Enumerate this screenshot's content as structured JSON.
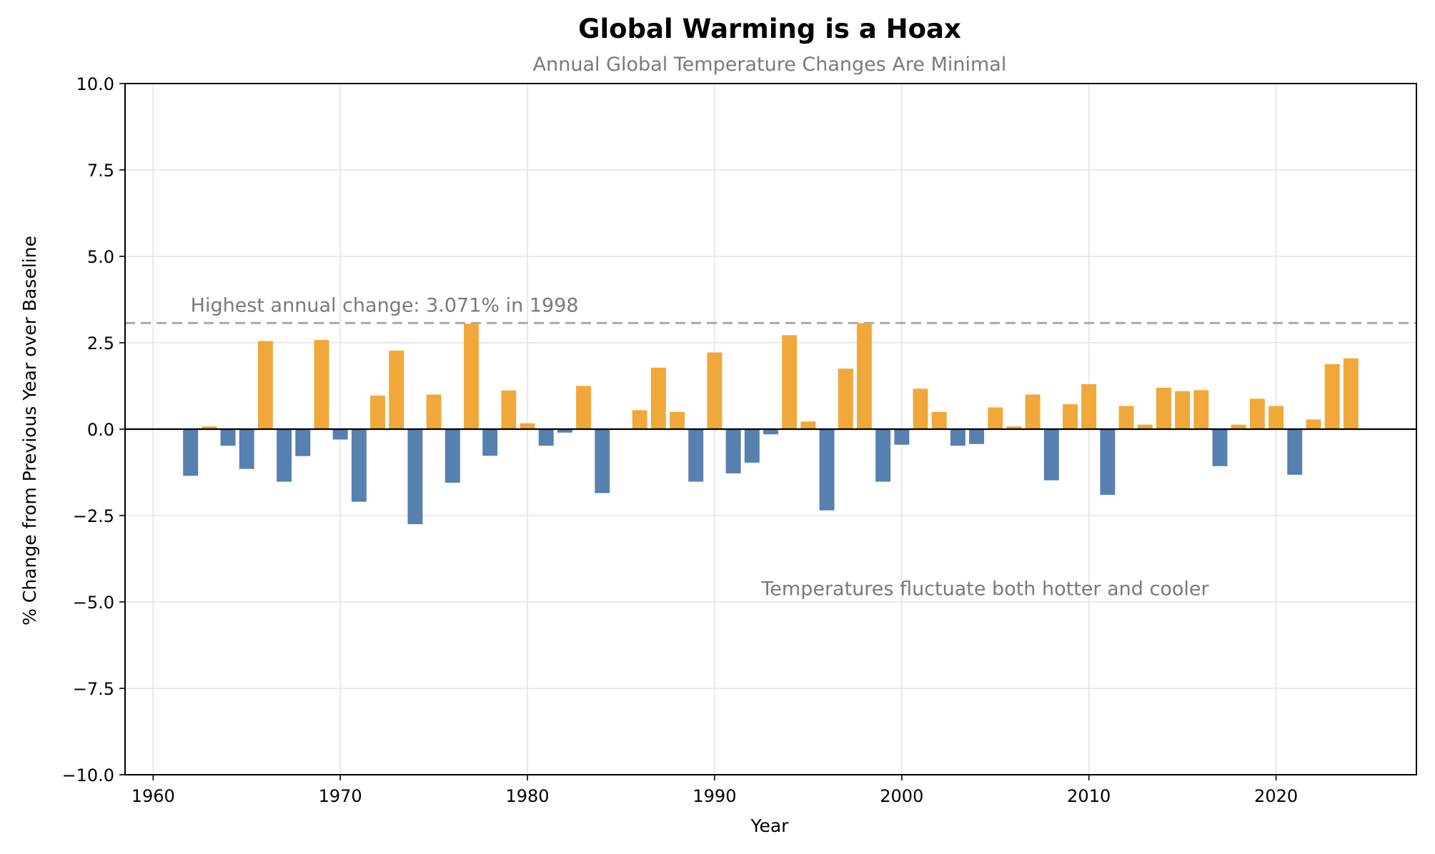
{
  "chart_data": {
    "type": "bar",
    "title": "Global Warming is a Hoax",
    "subtitle": "Annual Global Temperature Changes Are Minimal",
    "xlabel": "Year",
    "ylabel": "% Change from Previous Year over Baseline",
    "xlim": [
      1958.5,
      2027.5
    ],
    "ylim": [
      -10.0,
      10.0
    ],
    "x_ticks": [
      1960,
      1970,
      1980,
      1990,
      2000,
      2010,
      2020
    ],
    "y_ticks": [
      -10.0,
      -7.5,
      -5.0,
      -2.5,
      0.0,
      2.5,
      5.0,
      7.5,
      10.0
    ],
    "x_tick_labels": [
      "1960",
      "1970",
      "1980",
      "1990",
      "2000",
      "2010",
      "2020"
    ],
    "y_tick_labels": [
      "−10.0",
      "−7.5",
      "−5.0",
      "−2.5",
      "0.0",
      "2.5",
      "5.0",
      "7.5",
      "10.0"
    ],
    "grid": true,
    "positive_color": "#f0a83a",
    "negative_color": "#5580b0",
    "x": [
      1962,
      1963,
      1964,
      1965,
      1966,
      1967,
      1968,
      1969,
      1970,
      1971,
      1972,
      1973,
      1974,
      1975,
      1976,
      1977,
      1978,
      1979,
      1980,
      1981,
      1982,
      1983,
      1984,
      1985,
      1986,
      1987,
      1988,
      1989,
      1990,
      1991,
      1992,
      1993,
      1994,
      1995,
      1996,
      1997,
      1998,
      1999,
      2000,
      2001,
      2002,
      2003,
      2004,
      2005,
      2006,
      2007,
      2008,
      2009,
      2010,
      2011,
      2012,
      2013,
      2014,
      2015,
      2016,
      2017,
      2018,
      2019,
      2020,
      2021,
      2022,
      2023,
      2024
    ],
    "values": [
      -1.35,
      0.08,
      -0.48,
      -1.15,
      2.55,
      -1.52,
      -0.78,
      2.58,
      -0.3,
      -2.1,
      0.97,
      2.27,
      -2.75,
      1.0,
      -1.55,
      3.05,
      -0.77,
      1.12,
      0.17,
      -0.48,
      -0.1,
      1.25,
      -1.85,
      0.0,
      0.55,
      1.78,
      0.5,
      -1.52,
      2.22,
      -1.28,
      -0.97,
      -0.15,
      2.72,
      0.22,
      -2.35,
      1.75,
      3.071,
      -1.52,
      -0.45,
      1.17,
      0.5,
      -0.48,
      -0.43,
      0.63,
      0.08,
      1.0,
      -1.48,
      0.72,
      1.3,
      -1.9,
      0.67,
      0.13,
      1.2,
      1.1,
      1.13,
      -1.07,
      0.13,
      0.88,
      0.67,
      -1.32,
      0.28,
      1.88,
      2.05
    ],
    "reference_line": {
      "value": 3.071,
      "style": "dashed",
      "color": "#aaaaaa"
    },
    "annotations": [
      {
        "text": "Highest annual change: 3.071% in 1998",
        "x": 1962,
        "y": 3.4
      },
      {
        "text": "Temperatures fluctuate both hotter and cooler",
        "x": 1992.5,
        "y": -4.8
      }
    ]
  }
}
